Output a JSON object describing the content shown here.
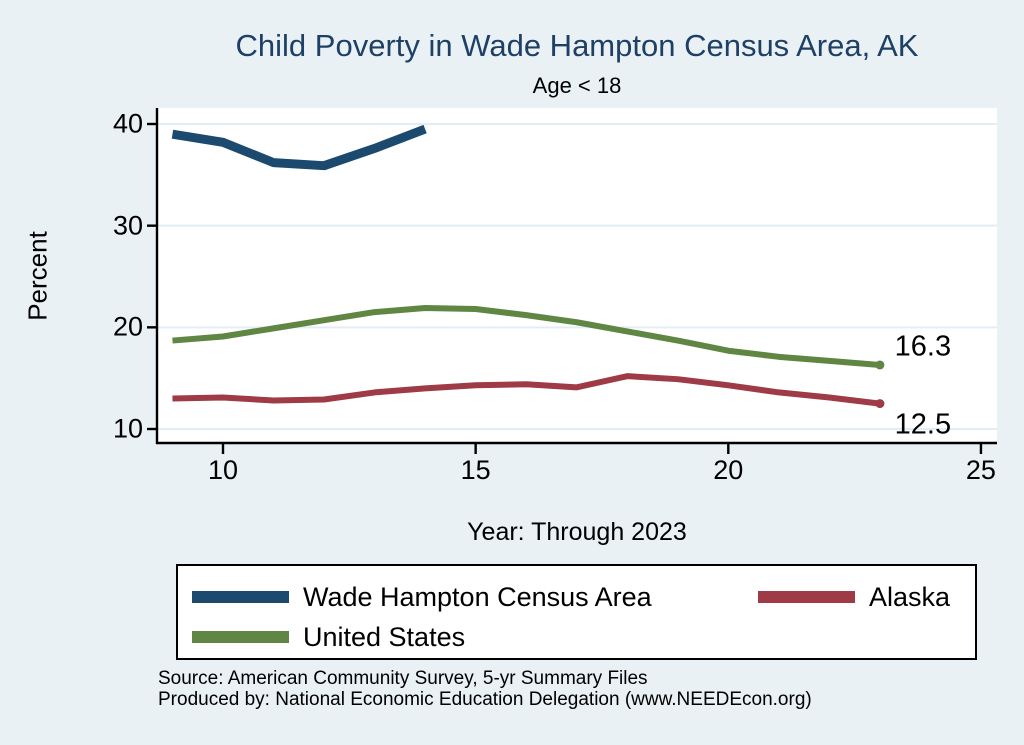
{
  "chart_data": {
    "type": "line",
    "title": "Child Poverty in Wade Hampton Census Area, AK",
    "subtitle": "Age < 18",
    "ylabel": "Percent",
    "xlabel": "Year: Through 2023",
    "x_ticks": [
      "10",
      "15",
      "20",
      "25"
    ],
    "x_tick_values": [
      10,
      15,
      20,
      25
    ],
    "y_ticks": [
      "10",
      "20",
      "30",
      "40"
    ],
    "y_tick_values": [
      10,
      20,
      30,
      40
    ],
    "xlim": [
      8.7,
      25.3
    ],
    "ylim": [
      8.6,
      41.6
    ],
    "grid": true,
    "legend_position": "bottom-box",
    "background_color": "#e9f1f4",
    "plot_background_color": "#ffffff",
    "gridline_color": "#e3eef4",
    "series": [
      {
        "name": "Wade Hampton Census Area",
        "color": "#1b4a6e",
        "line_width": 9,
        "x": [
          9,
          10,
          11,
          12,
          13,
          14
        ],
        "values": [
          39.0,
          38.2,
          36.2,
          35.9,
          37.6,
          39.5
        ],
        "end_label": "",
        "end_dot": false
      },
      {
        "name": "Alaska",
        "color": "#9e3b46",
        "line_width": 6,
        "x": [
          9,
          10,
          11,
          12,
          13,
          14,
          15,
          16,
          17,
          18,
          19,
          20,
          21,
          22,
          23
        ],
        "values": [
          13.0,
          13.1,
          12.8,
          12.9,
          13.6,
          14.0,
          14.3,
          14.4,
          14.1,
          15.2,
          14.9,
          14.3,
          13.6,
          13.1,
          12.5
        ],
        "end_label": "12.5",
        "end_dot": true
      },
      {
        "name": "United States",
        "color": "#5f8642",
        "line_width": 6,
        "x": [
          9,
          10,
          11,
          12,
          13,
          14,
          15,
          16,
          17,
          18,
          19,
          20,
          21,
          22,
          23
        ],
        "values": [
          18.7,
          19.1,
          19.9,
          20.7,
          21.5,
          21.9,
          21.8,
          21.2,
          20.5,
          19.6,
          18.7,
          17.7,
          17.1,
          16.7,
          16.3
        ],
        "end_label": "16.3",
        "end_dot": true
      }
    ]
  },
  "footer": {
    "source_line1": "Source: American Community Survey, 5-yr Summary Files",
    "source_line2": "Produced by: National Economic Education Delegation (www.NEEDEcon.org)"
  }
}
